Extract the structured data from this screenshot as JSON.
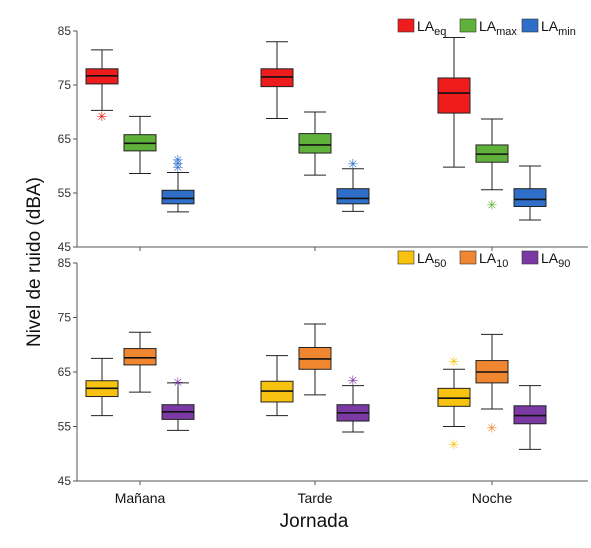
{
  "chart_data": {
    "type": "boxplot",
    "xlabel": "Jornada",
    "ylabel": "Nivel de ruido (dBA)",
    "categories": [
      "Mañana",
      "Tarde",
      "Noche"
    ],
    "panels": [
      {
        "ylim": [
          45,
          85
        ],
        "yticks": [
          45,
          55,
          65,
          75,
          85
        ],
        "legend_position": "top-right",
        "series": [
          {
            "key": "LAeq",
            "legend_main": "LA",
            "legend_sub": "eq",
            "color": "#ee1c1c",
            "boxes": [
              {
                "whisker_low": 70.3,
                "q1": 75.2,
                "median": 76.7,
                "q3": 78.0,
                "whisker_high": 81.5,
                "outliers": [
                  69.3
                ]
              },
              {
                "whisker_low": 68.8,
                "q1": 74.7,
                "median": 76.5,
                "q3": 78.0,
                "whisker_high": 83.0,
                "outliers": []
              },
              {
                "whisker_low": 59.8,
                "q1": 69.8,
                "median": 73.5,
                "q3": 76.3,
                "whisker_high": 83.8,
                "outliers": []
              }
            ]
          },
          {
            "key": "LAmax",
            "legend_main": "LA",
            "legend_sub": "max",
            "color": "#5fb13a",
            "boxes": [
              {
                "whisker_low": 58.6,
                "q1": 62.8,
                "median": 64.2,
                "q3": 65.8,
                "whisker_high": 69.2,
                "outliers": []
              },
              {
                "whisker_low": 58.3,
                "q1": 62.4,
                "median": 63.9,
                "q3": 66.0,
                "whisker_high": 70.0,
                "outliers": []
              },
              {
                "whisker_low": 55.6,
                "q1": 60.7,
                "median": 62.2,
                "q3": 63.9,
                "whisker_high": 68.7,
                "outliers": [
                  52.9
                ]
              }
            ]
          },
          {
            "key": "LAmin",
            "legend_main": "LA",
            "legend_sub": "min",
            "color": "#2f6fc9",
            "boxes": [
              {
                "whisker_low": 51.5,
                "q1": 53.0,
                "median": 54.0,
                "q3": 55.5,
                "whisker_high": 58.8,
                "outliers": [
                  59.8,
                  60.6,
                  61.2
                ]
              },
              {
                "whisker_low": 51.6,
                "q1": 53.0,
                "median": 54.0,
                "q3": 55.8,
                "whisker_high": 59.5,
                "outliers": [
                  60.5
                ]
              },
              {
                "whisker_low": 50.0,
                "q1": 52.5,
                "median": 53.8,
                "q3": 55.8,
                "whisker_high": 60.0,
                "outliers": []
              }
            ]
          }
        ]
      },
      {
        "ylim": [
          45,
          85
        ],
        "yticks": [
          45,
          55,
          65,
          75,
          85
        ],
        "legend_position": "top-right",
        "series": [
          {
            "key": "LA50",
            "legend_main": "LA",
            "legend_sub": "50",
            "color": "#f7c310",
            "boxes": [
              {
                "whisker_low": 57.0,
                "q1": 60.5,
                "median": 62.0,
                "q3": 63.4,
                "whisker_high": 67.5,
                "outliers": []
              },
              {
                "whisker_low": 57.0,
                "q1": 59.5,
                "median": 61.5,
                "q3": 63.3,
                "whisker_high": 68.0,
                "outliers": []
              },
              {
                "whisker_low": 55.0,
                "q1": 58.7,
                "median": 60.2,
                "q3": 62.0,
                "whisker_high": 65.5,
                "outliers": [
                  67.0,
                  51.8
                ]
              }
            ]
          },
          {
            "key": "LA10",
            "legend_main": "LA",
            "legend_sub": "10",
            "color": "#f08630",
            "boxes": [
              {
                "whisker_low": 61.3,
                "q1": 66.3,
                "median": 67.6,
                "q3": 69.3,
                "whisker_high": 72.3,
                "outliers": []
              },
              {
                "whisker_low": 60.8,
                "q1": 65.5,
                "median": 67.4,
                "q3": 69.5,
                "whisker_high": 73.8,
                "outliers": []
              },
              {
                "whisker_low": 58.2,
                "q1": 63.0,
                "median": 65.0,
                "q3": 67.1,
                "whisker_high": 71.9,
                "outliers": [
                  54.8
                ]
              }
            ]
          },
          {
            "key": "LA90",
            "legend_main": "LA",
            "legend_sub": "90",
            "color": "#7b3aa3",
            "boxes": [
              {
                "whisker_low": 54.3,
                "q1": 56.3,
                "median": 57.7,
                "q3": 59.0,
                "whisker_high": 63.0,
                "outliers": [
                  63.2
                ]
              },
              {
                "whisker_low": 54.0,
                "q1": 56.0,
                "median": 57.5,
                "q3": 59.0,
                "whisker_high": 62.5,
                "outliers": [
                  63.5
                ]
              },
              {
                "whisker_low": 50.8,
                "q1": 55.5,
                "median": 57.0,
                "q3": 58.8,
                "whisker_high": 62.5,
                "outliers": []
              }
            ]
          }
        ]
      }
    ]
  }
}
